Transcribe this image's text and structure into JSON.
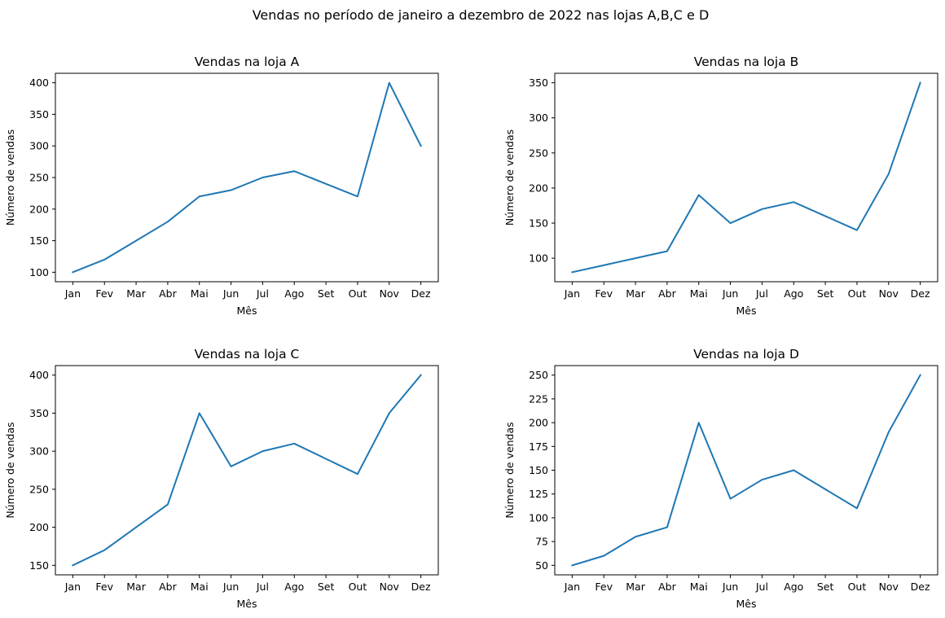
{
  "chart_data": {
    "title": "Vendas no período de janeiro a dezembro de 2022 nas lojas A,B,C e D",
    "charts": [
      {
        "type": "line",
        "title": "Vendas na loja A",
        "xlabel": "Mês",
        "ylabel": "Número de vendas",
        "categories": [
          "Jan",
          "Fev",
          "Mar",
          "Abr",
          "Mai",
          "Jun",
          "Jul",
          "Ago",
          "Set",
          "Out",
          "Nov",
          "Dez"
        ],
        "values": [
          100,
          120,
          150,
          180,
          220,
          230,
          250,
          260,
          240,
          220,
          400,
          300
        ],
        "ylim": [
          85,
          415
        ],
        "yticks": [
          100,
          150,
          200,
          250,
          300,
          350,
          400
        ],
        "color": "#1f77b4",
        "grid": false
      },
      {
        "type": "line",
        "title": "Vendas na loja B",
        "xlabel": "Mês",
        "ylabel": "Número de vendas",
        "categories": [
          "Jan",
          "Fev",
          "Mar",
          "Abr",
          "Mai",
          "Jun",
          "Jul",
          "Ago",
          "Set",
          "Out",
          "Nov",
          "Dez"
        ],
        "values": [
          80,
          90,
          100,
          110,
          190,
          150,
          170,
          180,
          160,
          140,
          220,
          350
        ],
        "ylim": [
          66.5,
          363.5
        ],
        "yticks": [
          100,
          150,
          200,
          250,
          300,
          350
        ],
        "color": "#1f77b4",
        "grid": false
      },
      {
        "type": "line",
        "title": "Vendas na loja C",
        "xlabel": "Mês",
        "ylabel": "Número de vendas",
        "categories": [
          "Jan",
          "Fev",
          "Mar",
          "Abr",
          "Mai",
          "Jun",
          "Jul",
          "Ago",
          "Set",
          "Out",
          "Nov",
          "Dez"
        ],
        "values": [
          150,
          170,
          200,
          230,
          350,
          280,
          300,
          310,
          290,
          270,
          350,
          400
        ],
        "ylim": [
          137.5,
          412.5
        ],
        "yticks": [
          150,
          200,
          250,
          300,
          350,
          400
        ],
        "color": "#1f77b4",
        "grid": false
      },
      {
        "type": "line",
        "title": "Vendas na loja D",
        "xlabel": "Mês",
        "ylabel": "Número de vendas",
        "categories": [
          "Jan",
          "Fev",
          "Mar",
          "Abr",
          "Mai",
          "Jun",
          "Jul",
          "Ago",
          "Set",
          "Out",
          "Nov",
          "Dez"
        ],
        "values": [
          50,
          60,
          80,
          90,
          200,
          120,
          140,
          150,
          130,
          110,
          190,
          250
        ],
        "ylim": [
          40,
          260
        ],
        "yticks": [
          50,
          75,
          100,
          125,
          150,
          175,
          200,
          225,
          250
        ],
        "color": "#1f77b4",
        "grid": false
      }
    ]
  }
}
